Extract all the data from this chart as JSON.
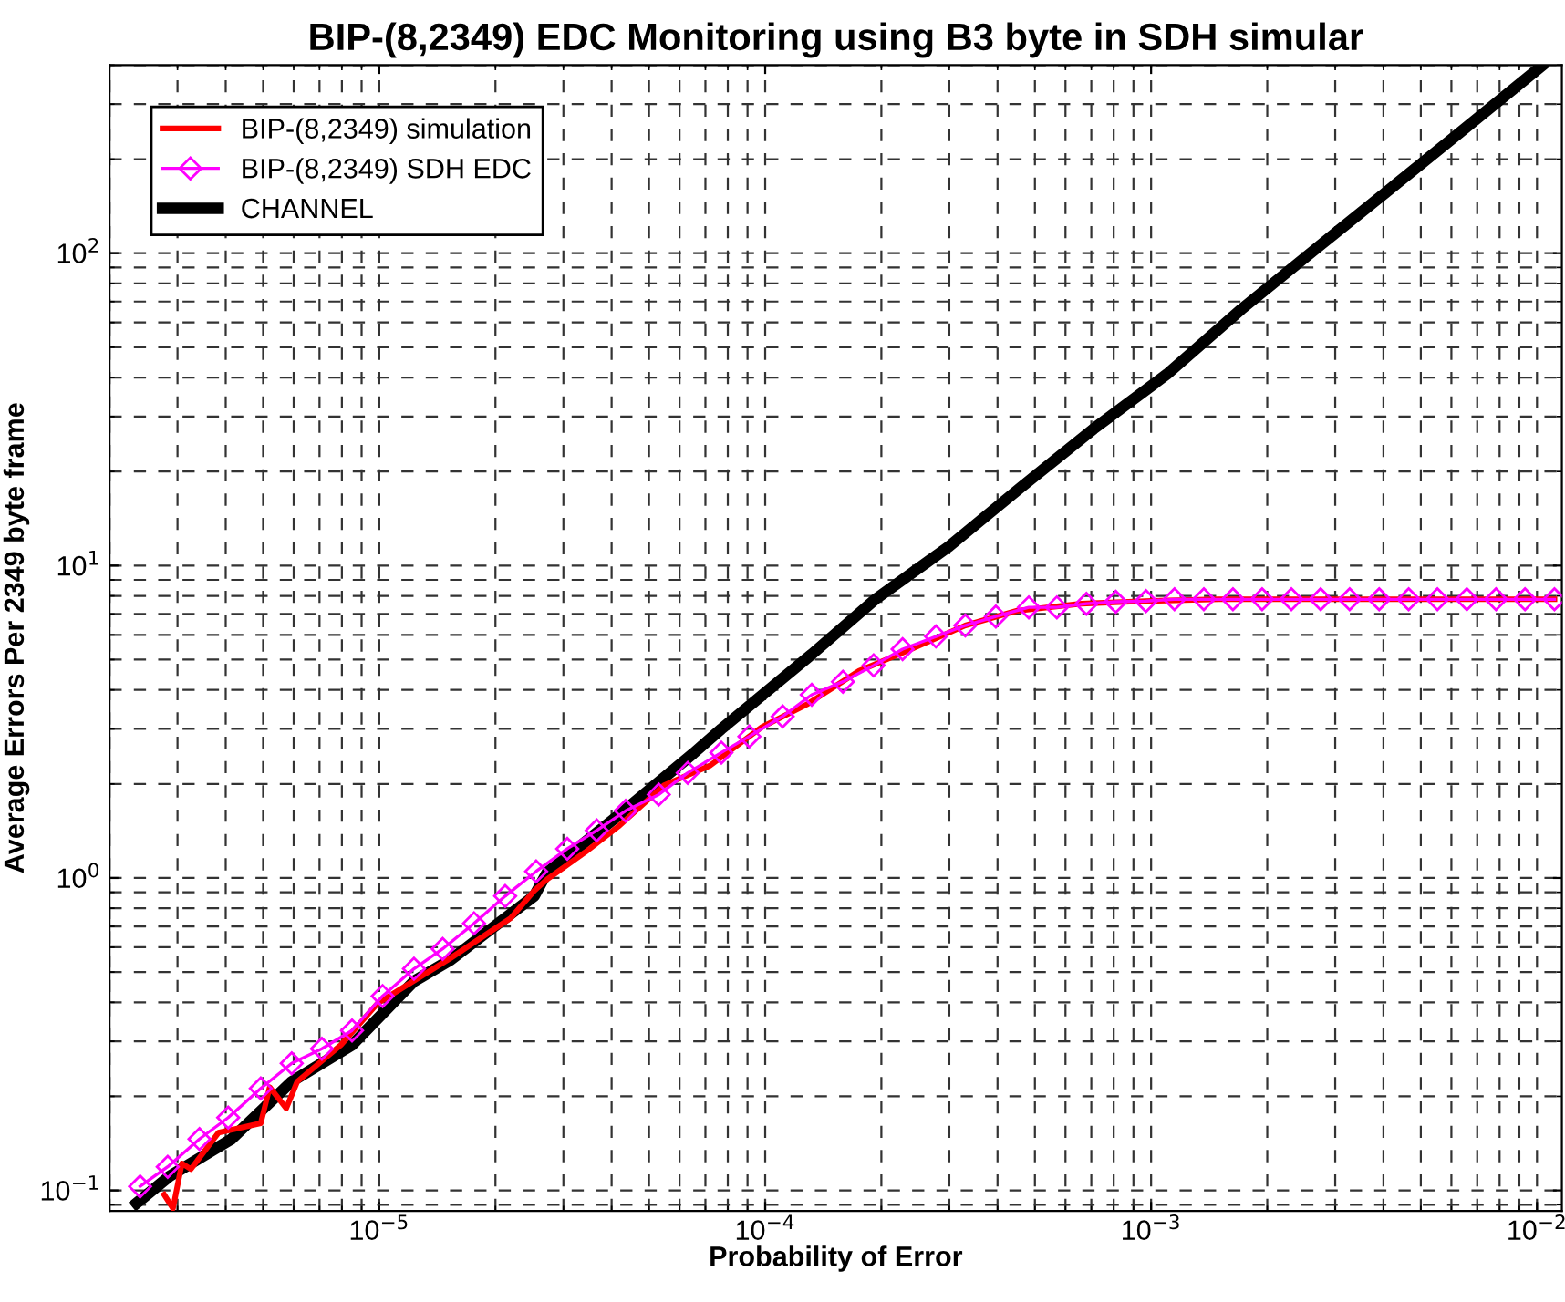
{
  "chart_data": {
    "type": "line",
    "title": "BIP-(8,2349) EDC Monitoring using B3 byte in SDH simular",
    "xlabel": "Probability of Error",
    "ylabel": "Average Errors Per 2349 byte frame",
    "log": "xy",
    "grid": true,
    "legend": "top left",
    "xlim": [
      2e-06,
      0.0116
    ],
    "ylim": [
      0.086,
      400
    ],
    "xticks": [
      {
        "value": 1e-05,
        "label": "10$^{−5}$"
      },
      {
        "value": 0.0001,
        "label": "10$^{−4}$"
      },
      {
        "value": 0.001,
        "label": "10$^{−3}$"
      },
      {
        "value": 0.01,
        "label": "10$^{−2}$"
      }
    ],
    "yticks": [
      {
        "value": 0.1,
        "label": "10$^{−1}$"
      },
      {
        "value": 1,
        "label": "10$^{0}$"
      },
      {
        "value": 10,
        "label": "10$^{1}$"
      },
      {
        "value": 100,
        "label": "10$^{2}$"
      }
    ],
    "series": [
      {
        "name": "BIP-(8,2349) simulation",
        "color": "#ff0000",
        "marker": "none",
        "x": [
          2.77e-06,
          2.92e-06,
          3.08e-06,
          3.25e-06,
          3.83e-06,
          4.93e-06,
          5.2e-06,
          5.74e-06,
          6.13e-06,
          7.95e-06,
          9.9e-06,
          1.53e-05,
          2.19e-05,
          2.52e-05,
          2.72e-05,
          3.42e-05,
          4.16e-05,
          5.47e-05,
          7.2e-05,
          9.8e-05,
          0.000129,
          0.000175,
          0.000239,
          0.00033,
          0.000448,
          0.00066,
          0.00097,
          0.0015,
          0.0025,
          0.004,
          0.0065,
          0.0111
        ],
        "values": [
          0.097,
          0.0875,
          0.122,
          0.117,
          0.153,
          0.164,
          0.214,
          0.183,
          0.223,
          0.292,
          0.397,
          0.554,
          0.744,
          0.91,
          0.99,
          1.21,
          1.46,
          1.98,
          2.29,
          3.04,
          3.61,
          4.6,
          5.4,
          6.43,
          7.16,
          7.55,
          7.7,
          7.8,
          7.8,
          7.8,
          7.8,
          7.8
        ]
      },
      {
        "name": "BIP-(8,2349) SDH EDC",
        "color": "#ff00ff",
        "marker": "diamond",
        "x": [
          2.4e-06,
          2.83e-06,
          3.42e-06,
          4.06e-06,
          4.93e-06,
          5.93e-06,
          7.1e-06,
          8.5e-06,
          1.02e-05,
          1.23e-05,
          1.46e-05,
          1.76e-05,
          2.12e-05,
          2.55e-05,
          3.07e-05,
          3.66e-05,
          4.35e-05,
          5.3e-05,
          6.3e-05,
          7.7e-05,
          9.1e-05,
          0.000111,
          0.000132,
          0.000159,
          0.000191,
          0.000227,
          0.000277,
          0.00033,
          0.000396,
          0.000482,
          0.00057,
          0.00068,
          0.00081,
          0.00097,
          0.00115,
          0.00137,
          0.00163,
          0.00194,
          0.00231,
          0.00275,
          0.00327,
          0.0039,
          0.00465,
          0.00552,
          0.00658,
          0.00783,
          0.00931,
          0.0111
        ],
        "values": [
          0.103,
          0.119,
          0.146,
          0.171,
          0.212,
          0.255,
          0.284,
          0.325,
          0.419,
          0.512,
          0.593,
          0.716,
          0.875,
          1.05,
          1.24,
          1.42,
          1.64,
          1.85,
          2.17,
          2.52,
          2.84,
          3.29,
          3.86,
          4.25,
          4.79,
          5.4,
          5.93,
          6.43,
          6.87,
          7.35,
          7.35,
          7.55,
          7.66,
          7.7,
          7.8,
          7.8,
          7.8,
          7.8,
          7.8,
          7.8,
          7.8,
          7.8,
          7.8,
          7.8,
          7.8,
          7.8,
          7.8,
          7.8
        ]
      },
      {
        "name": "CHANNEL",
        "color": "#000000",
        "marker": "none",
        "x": [
          2.35e-06,
          2.86e-06,
          4.14e-06,
          5.93e-06,
          8.5e-06,
          1.23e-05,
          1.53e-05,
          2.52e-05,
          2.72e-05,
          4.2e-05,
          6.5e-05,
          7.7e-05,
          0.000132,
          0.000193,
          0.000299,
          0.00046,
          0.00071,
          0.0011,
          0.00171,
          0.00264,
          0.00407,
          0.0063,
          0.0103
        ],
        "values": [
          0.091,
          0.111,
          0.146,
          0.223,
          0.292,
          0.467,
          0.547,
          0.875,
          1.04,
          1.6,
          2.5,
          3.0,
          5.2,
          7.8,
          11.5,
          17.8,
          27.4,
          41,
          66,
          102,
          157,
          243,
          398
        ]
      }
    ]
  }
}
